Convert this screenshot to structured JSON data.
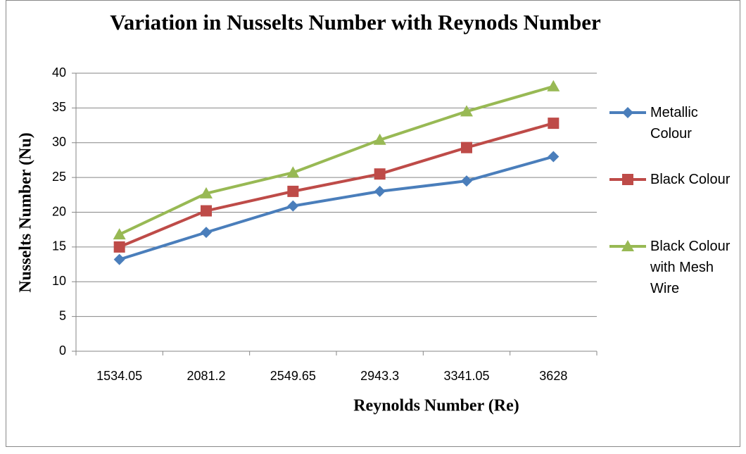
{
  "chart_data": {
    "type": "line",
    "title": "Variation in Nusselts Number with Reynods Number",
    "x_label": "Reynolds Number (Re)",
    "y_label": "Nusselts Number (Nu)",
    "categories": [
      "1534.05",
      "2081.2",
      "2549.65",
      "2943.3",
      "3341.05",
      "3628"
    ],
    "series": [
      {
        "name": "Metallic Colour",
        "color": "#4a7ebb",
        "values": [
          13.2,
          17.1,
          20.9,
          23,
          24.5,
          28
        ]
      },
      {
        "name": "Black Colour",
        "color": "#be4b48",
        "values": [
          15,
          20.2,
          23,
          25.5,
          29.3,
          32.8
        ]
      },
      {
        "name": "Black Colour with Mesh Wire",
        "color": "#98b954",
        "values": [
          16.8,
          22.7,
          25.7,
          30.4,
          34.5,
          38.1
        ]
      }
    ],
    "ylim": [
      0,
      40
    ],
    "yticks": [
      0,
      5,
      10,
      15,
      20,
      25,
      30,
      35,
      40
    ],
    "grid": true,
    "legend": "right"
  }
}
